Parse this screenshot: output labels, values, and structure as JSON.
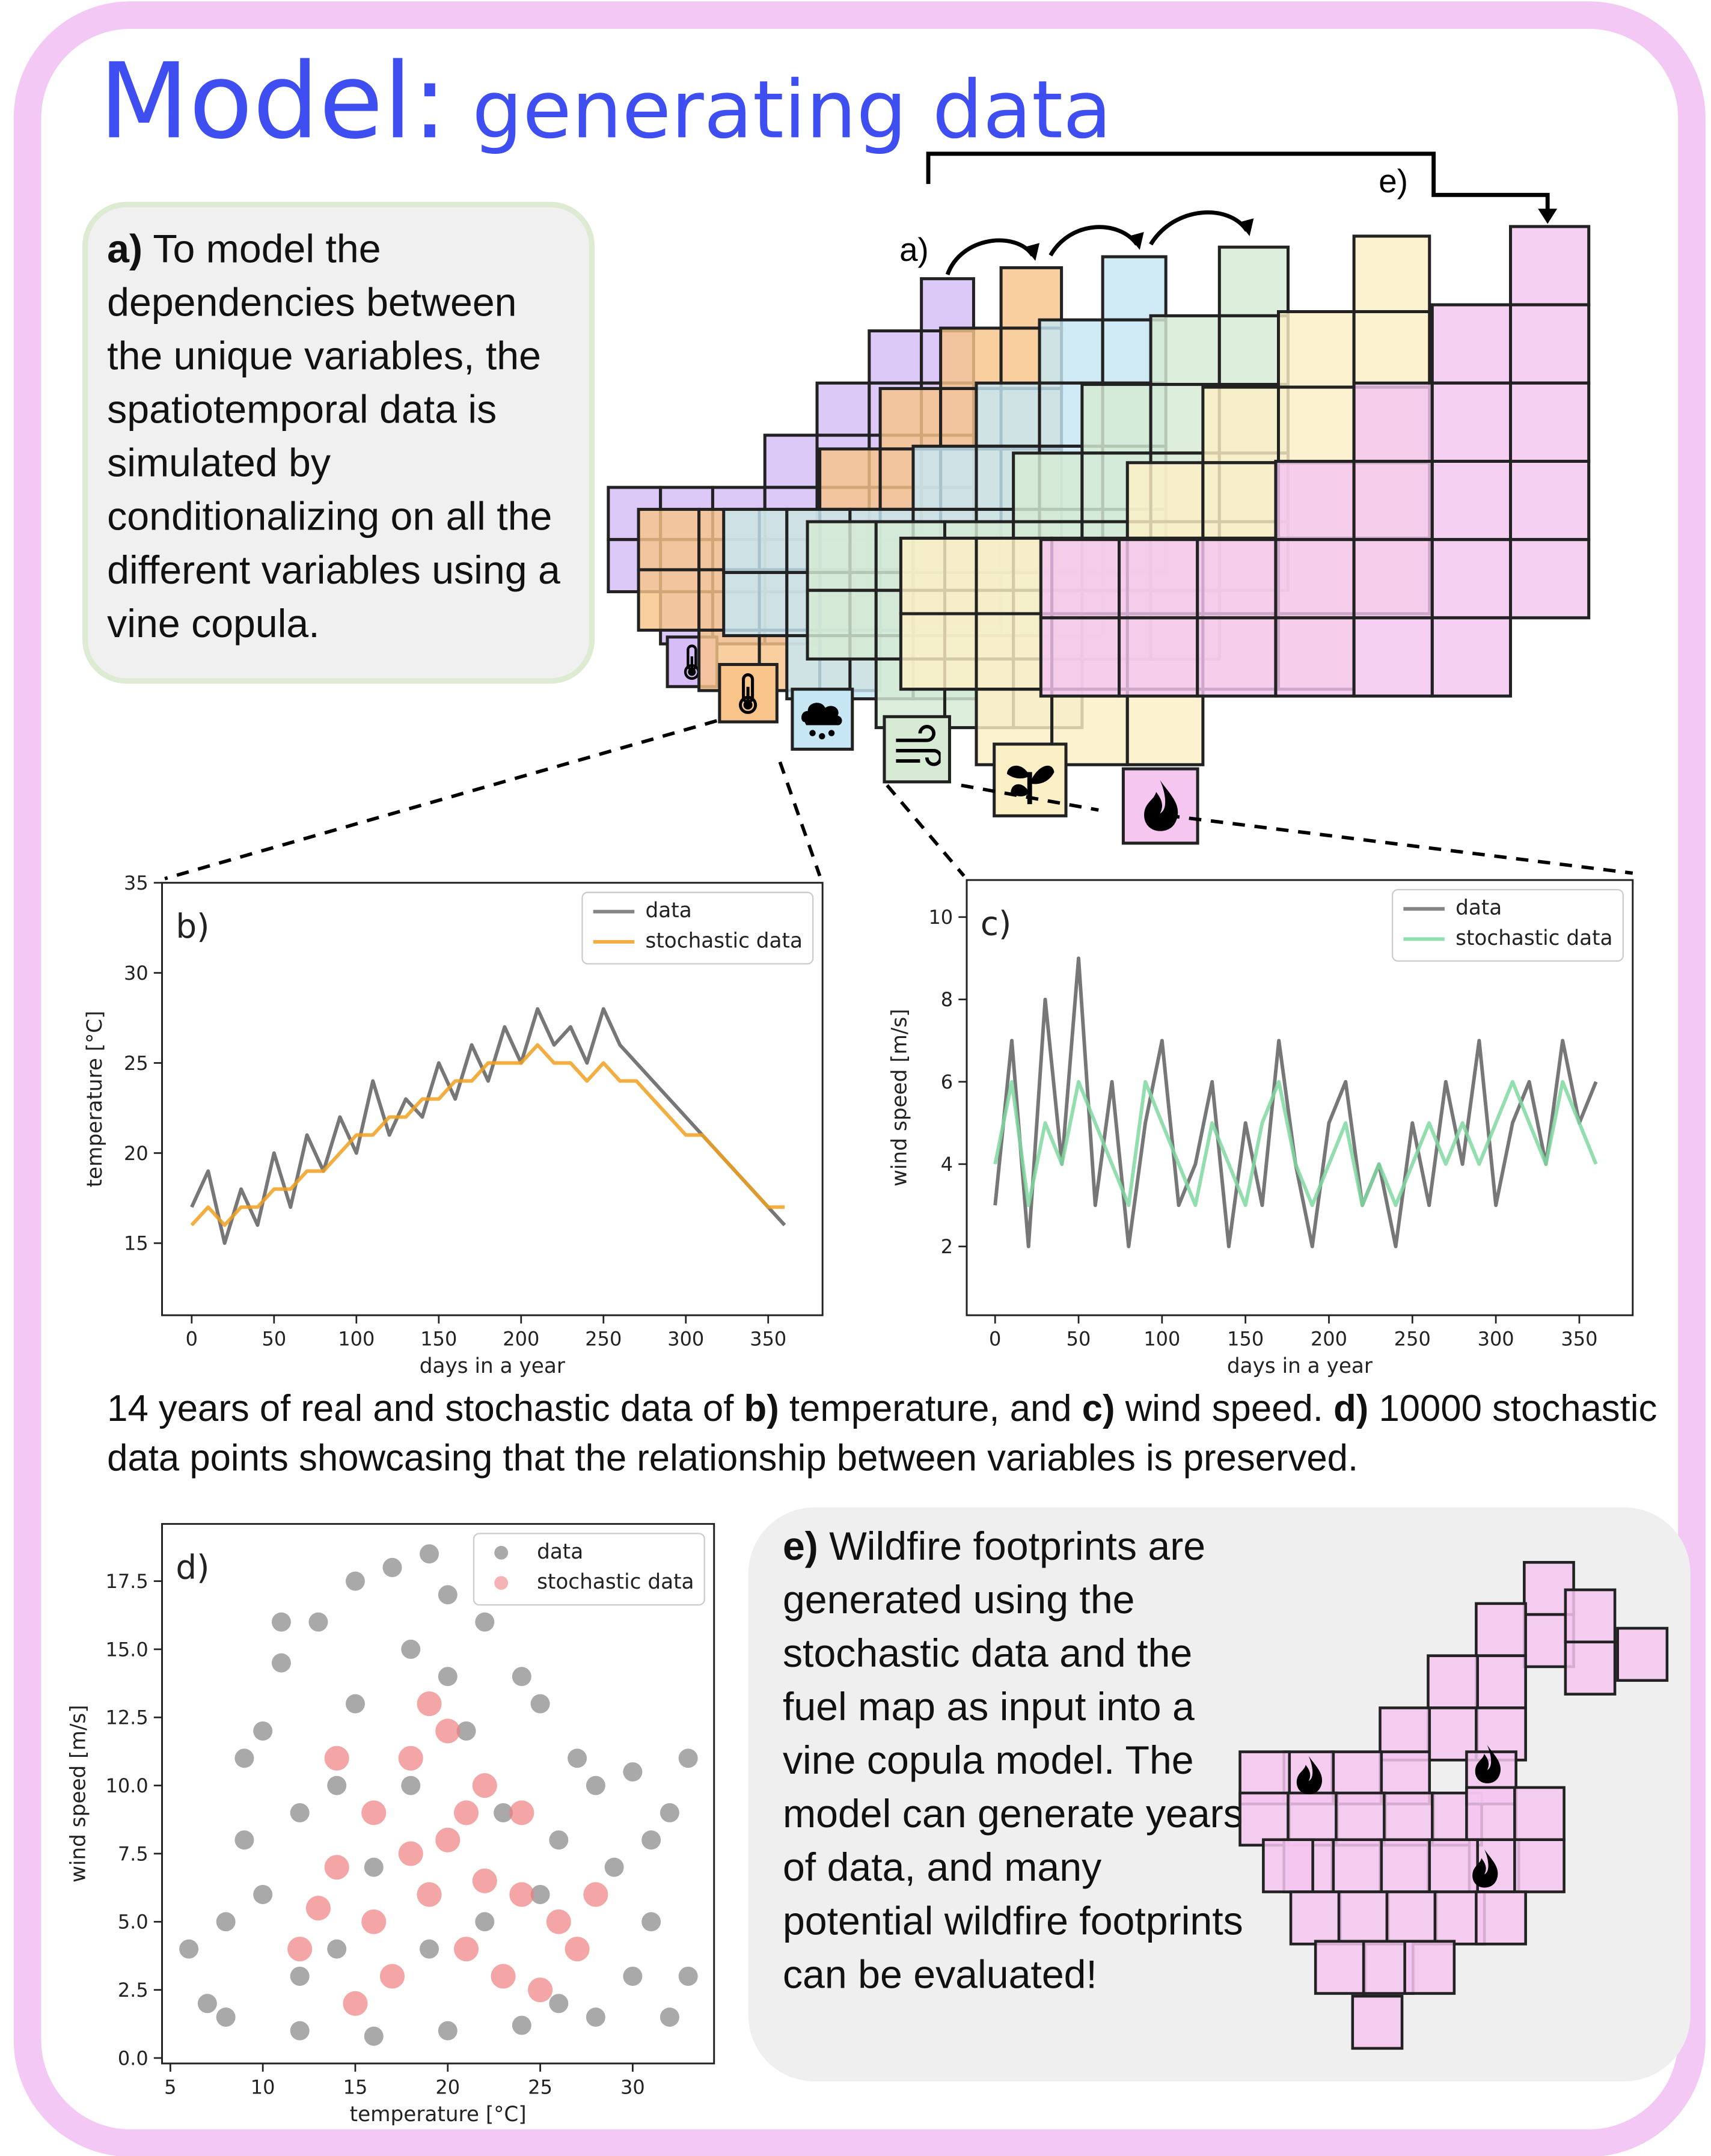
{
  "title": {
    "main": "Model:",
    "sub": "generating data"
  },
  "diagram": {
    "label_a": "a)",
    "label_e": "e)"
  },
  "panel_a": [
    "a)",
    "To model the dependencies between the unique variables, the spatiotemporal data is simulated by conditionalizing on all the different variables using a vine copula."
  ],
  "caption": [
    "14 years of real and stochastic data of",
    "b)",
    "temperature, and",
    "c)",
    "wind speed.",
    "d)",
    "10000 stochastic data points showcasing that the relationship between variables is preserved."
  ],
  "panel_e": [
    "e)",
    "Wildfire footprints are generated using the stochastic data and the fuel map as input into a vine copula model. The model can generate years of data, and many potential wildfire footprints can be evaluated!"
  ],
  "chart_data": [
    {
      "type": "line",
      "panel_label": "b)",
      "xlabel": "days in a year",
      "ylabel": "temperature [°C]",
      "xlim": [
        -18,
        383
      ],
      "ylim": [
        11,
        35
      ],
      "xticks": [
        0,
        50,
        100,
        150,
        200,
        250,
        300,
        350
      ],
      "yticks": [
        15,
        20,
        25,
        30,
        35
      ],
      "legend": "upper right",
      "x": [
        0,
        10,
        20,
        30,
        40,
        50,
        60,
        70,
        80,
        90,
        100,
        110,
        120,
        130,
        140,
        150,
        160,
        170,
        180,
        190,
        200,
        210,
        220,
        230,
        240,
        250,
        260,
        270,
        280,
        290,
        300,
        310,
        320,
        330,
        340,
        350,
        360
      ],
      "series": [
        {
          "name": "data",
          "color": "#707070",
          "values": [
            17,
            19,
            15,
            18,
            16,
            20,
            17,
            21,
            19,
            22,
            20,
            24,
            21,
            23,
            22,
            25,
            23,
            26,
            24,
            27,
            25,
            28,
            26,
            27,
            25,
            28,
            26,
            25,
            24,
            23,
            22,
            21,
            20,
            19,
            18,
            17,
            16
          ]
        },
        {
          "name": "stochastic data",
          "color": "#f0a020",
          "values": [
            16,
            17,
            16,
            17,
            17,
            18,
            18,
            19,
            19,
            20,
            21,
            21,
            22,
            22,
            23,
            23,
            24,
            24,
            25,
            25,
            25,
            26,
            25,
            25,
            24,
            25,
            24,
            24,
            23,
            22,
            21,
            21,
            20,
            19,
            18,
            17,
            17
          ]
        }
      ]
    },
    {
      "type": "line",
      "panel_label": "c)",
      "xlabel": "days in a year",
      "ylabel": "wind speed [m/s]",
      "xlim": [
        -17,
        382
      ],
      "ylim": [
        0.33,
        10.9
      ],
      "xticks": [
        0,
        50,
        100,
        150,
        200,
        250,
        300,
        350
      ],
      "yticks": [
        2,
        4,
        6,
        8,
        10
      ],
      "legend": "upper right",
      "x": [
        0,
        10,
        20,
        30,
        40,
        50,
        60,
        70,
        80,
        90,
        100,
        110,
        120,
        130,
        140,
        150,
        160,
        170,
        180,
        190,
        200,
        210,
        220,
        230,
        240,
        250,
        260,
        270,
        280,
        290,
        300,
        310,
        320,
        330,
        340,
        350,
        360
      ],
      "series": [
        {
          "name": "data",
          "color": "#707070",
          "values": [
            3,
            7,
            2,
            8,
            4,
            9,
            3,
            6,
            2,
            5,
            7,
            3,
            4,
            6,
            2,
            5,
            3,
            7,
            4,
            2,
            5,
            6,
            3,
            4,
            2,
            5,
            3,
            6,
            4,
            7,
            3,
            5,
            6,
            4,
            7,
            5,
            6
          ]
        },
        {
          "name": "stochastic data",
          "color": "#80d8a0",
          "values": [
            4,
            6,
            3,
            5,
            4,
            6,
            5,
            4,
            3,
            6,
            5,
            4,
            3,
            5,
            4,
            3,
            5,
            6,
            4,
            3,
            4,
            5,
            3,
            4,
            3,
            4,
            5,
            4,
            5,
            4,
            5,
            6,
            5,
            4,
            6,
            5,
            4
          ]
        }
      ]
    },
    {
      "type": "scatter",
      "panel_label": "d)",
      "xlabel": "temperature [°C]",
      "ylabel": "wind speed [m/s]",
      "xlim": [
        4.55,
        34.4
      ],
      "ylim": [
        -0.2,
        19.6
      ],
      "xticks": [
        5,
        10,
        15,
        20,
        25,
        30
      ],
      "yticks": [
        {
          "value": 0,
          "label": "0.0"
        },
        {
          "value": 2.5,
          "label": "2.5"
        },
        {
          "value": 5,
          "label": "5.0"
        },
        {
          "value": 7.5,
          "label": "7.5"
        },
        {
          "value": 10,
          "label": "10.0"
        },
        {
          "value": 12.5,
          "label": "12.5"
        },
        {
          "value": 15,
          "label": "15.0"
        },
        {
          "value": 17.5,
          "label": "17.5"
        }
      ],
      "legend": "upper right",
      "series": [
        {
          "name": "data",
          "color": "#707070",
          "x": [
            7,
            8,
            9,
            10,
            11,
            12,
            13,
            14,
            15,
            16,
            17,
            18,
            19,
            20,
            21,
            22,
            23,
            24,
            25,
            26,
            27,
            28,
            29,
            30,
            31,
            32,
            33,
            33,
            8,
            12,
            16,
            20,
            24,
            28,
            32,
            10,
            14,
            18,
            22,
            26,
            30,
            12,
            6,
            9,
            15,
            20,
            25,
            31,
            11,
            19
          ],
          "y": [
            2,
            5,
            8,
            12,
            14.5,
            3,
            16,
            10,
            17.5,
            7,
            18,
            15,
            4,
            17,
            12,
            16,
            9,
            14,
            13,
            2,
            11,
            10,
            7,
            10.5,
            5,
            9,
            3,
            11,
            1.5,
            1,
            0.8,
            1,
            1.2,
            1.5,
            1.5,
            6,
            4,
            10,
            5,
            8,
            3,
            9,
            4,
            11,
            13,
            14,
            6,
            8,
            16,
            18.5
          ]
        },
        {
          "name": "stochastic data",
          "color": "#f08080",
          "x": [
            12,
            14,
            16,
            18,
            20,
            22,
            24,
            26,
            17,
            19,
            21,
            23,
            15,
            25,
            13,
            18,
            20,
            22,
            16,
            21,
            19,
            14,
            24,
            27,
            28
          ],
          "y": [
            4,
            7,
            9,
            11,
            8,
            10,
            6,
            5,
            3,
            6,
            4,
            3,
            2,
            2.5,
            5.5,
            7.5,
            12,
            6.5,
            5,
            9,
            13,
            11,
            9,
            4,
            6
          ]
        }
      ]
    }
  ]
}
